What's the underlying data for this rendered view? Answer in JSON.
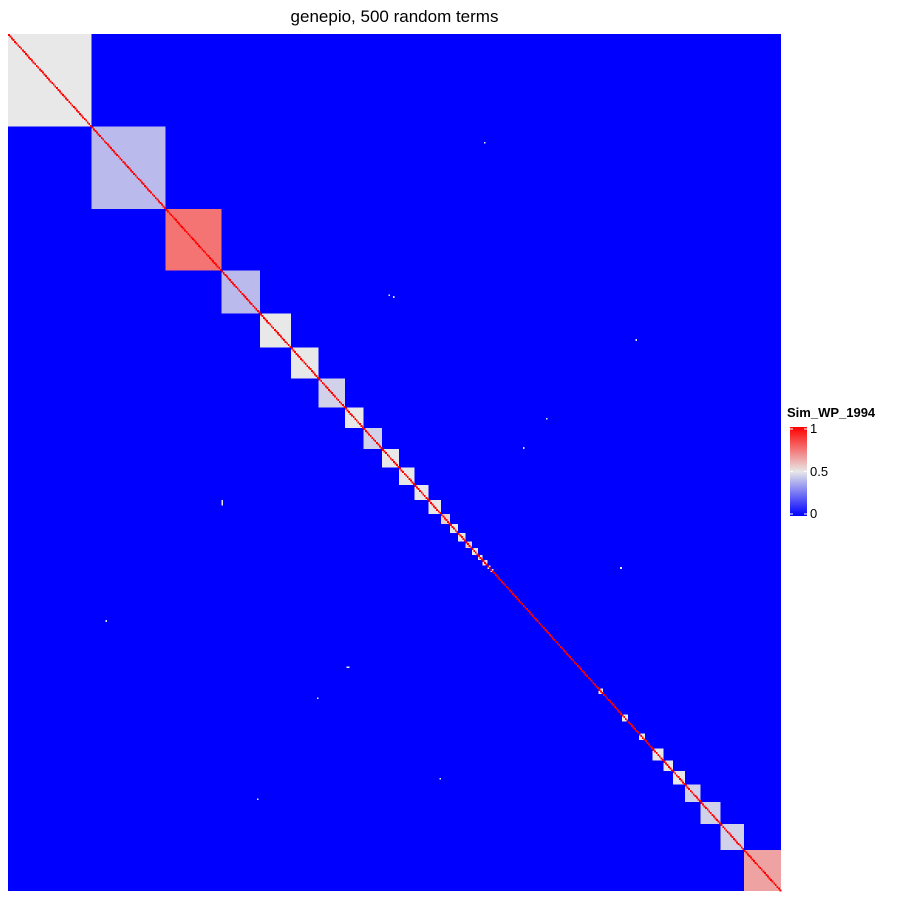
{
  "chart_data": {
    "type": "heatmap",
    "title": "genepio, 500 random terms",
    "n_terms": 500,
    "legend": {
      "title": "Sim_WP_1994",
      "placement": "right",
      "ticks": [
        "1",
        "0.5",
        "0"
      ],
      "tick_values": [
        1,
        0.5,
        0
      ],
      "range": [
        0,
        1
      ],
      "colors": {
        "low": "#0000ff",
        "mid": "#e8e8e8",
        "high": "#ff0000"
      }
    },
    "diagonal_value": 1,
    "background_value": 0,
    "blocks": [
      {
        "start": 0,
        "end": 54,
        "value": 0.5
      },
      {
        "start": 54,
        "end": 102,
        "value": 0.4
      },
      {
        "start": 102,
        "end": 138,
        "value": 0.75
      },
      {
        "start": 138,
        "end": 163,
        "value": 0.4
      },
      {
        "start": 163,
        "end": 183,
        "value": 0.5
      },
      {
        "start": 183,
        "end": 201,
        "value": 0.5
      },
      {
        "start": 201,
        "end": 218,
        "value": 0.45
      },
      {
        "start": 218,
        "end": 230,
        "value": 0.5
      },
      {
        "start": 230,
        "end": 242,
        "value": 0.45
      },
      {
        "start": 242,
        "end": 253,
        "value": 0.5
      },
      {
        "start": 253,
        "end": 263,
        "value": 0.5
      },
      {
        "start": 263,
        "end": 272,
        "value": 0.5
      },
      {
        "start": 272,
        "end": 280,
        "value": 0.5
      },
      {
        "start": 280,
        "end": 286,
        "value": 0.55
      },
      {
        "start": 286,
        "end": 291,
        "value": 0.5
      },
      {
        "start": 291,
        "end": 296,
        "value": 0.5
      },
      {
        "start": 296,
        "end": 300,
        "value": 0.55
      },
      {
        "start": 300,
        "end": 304,
        "value": 0.5
      },
      {
        "start": 304,
        "end": 307,
        "value": 0.5
      },
      {
        "start": 307,
        "end": 310,
        "value": 0.5
      },
      {
        "start": 310,
        "end": 312,
        "value": 0.5
      },
      {
        "start": 312,
        "end": 314,
        "value": 0.5
      },
      {
        "start": 382,
        "end": 385,
        "value": 0.5
      },
      {
        "start": 397,
        "end": 401,
        "value": 0.5
      },
      {
        "start": 408,
        "end": 412,
        "value": 0.5
      },
      {
        "start": 417,
        "end": 424,
        "value": 0.5
      },
      {
        "start": 424,
        "end": 430,
        "value": 0.5
      },
      {
        "start": 430,
        "end": 438,
        "value": 0.5
      },
      {
        "start": 438,
        "end": 448,
        "value": 0.45
      },
      {
        "start": 448,
        "end": 461,
        "value": 0.45
      },
      {
        "start": 461,
        "end": 476,
        "value": 0.45
      },
      {
        "start": 476,
        "end": 500,
        "value": 0.65
      }
    ],
    "off_diagonal_cells": [
      {
        "row": 63,
        "col": 308,
        "value": 0.5
      },
      {
        "row": 152,
        "col": 246,
        "value": 0.5
      },
      {
        "row": 153,
        "col": 249,
        "value": 0.5
      },
      {
        "row": 178,
        "col": 406,
        "value": 0.5
      },
      {
        "row": 224,
        "col": 348,
        "value": 0.5
      },
      {
        "row": 241,
        "col": 333,
        "value": 0.5
      },
      {
        "row": 272,
        "col": 138,
        "value": 0.5
      },
      {
        "row": 273,
        "col": 138,
        "value": 0.5
      },
      {
        "row": 274,
        "col": 138,
        "value": 0.5
      },
      {
        "row": 311,
        "col": 396,
        "value": 0.5
      },
      {
        "row": 342,
        "col": 63,
        "value": 0.5
      },
      {
        "row": 369,
        "col": 219,
        "value": 0.5
      },
      {
        "row": 369,
        "col": 220,
        "value": 0.5
      },
      {
        "row": 387,
        "col": 200,
        "value": 0.5
      },
      {
        "row": 434,
        "col": 279,
        "value": 0.5
      },
      {
        "row": 446,
        "col": 161,
        "value": 0.5
      }
    ]
  }
}
